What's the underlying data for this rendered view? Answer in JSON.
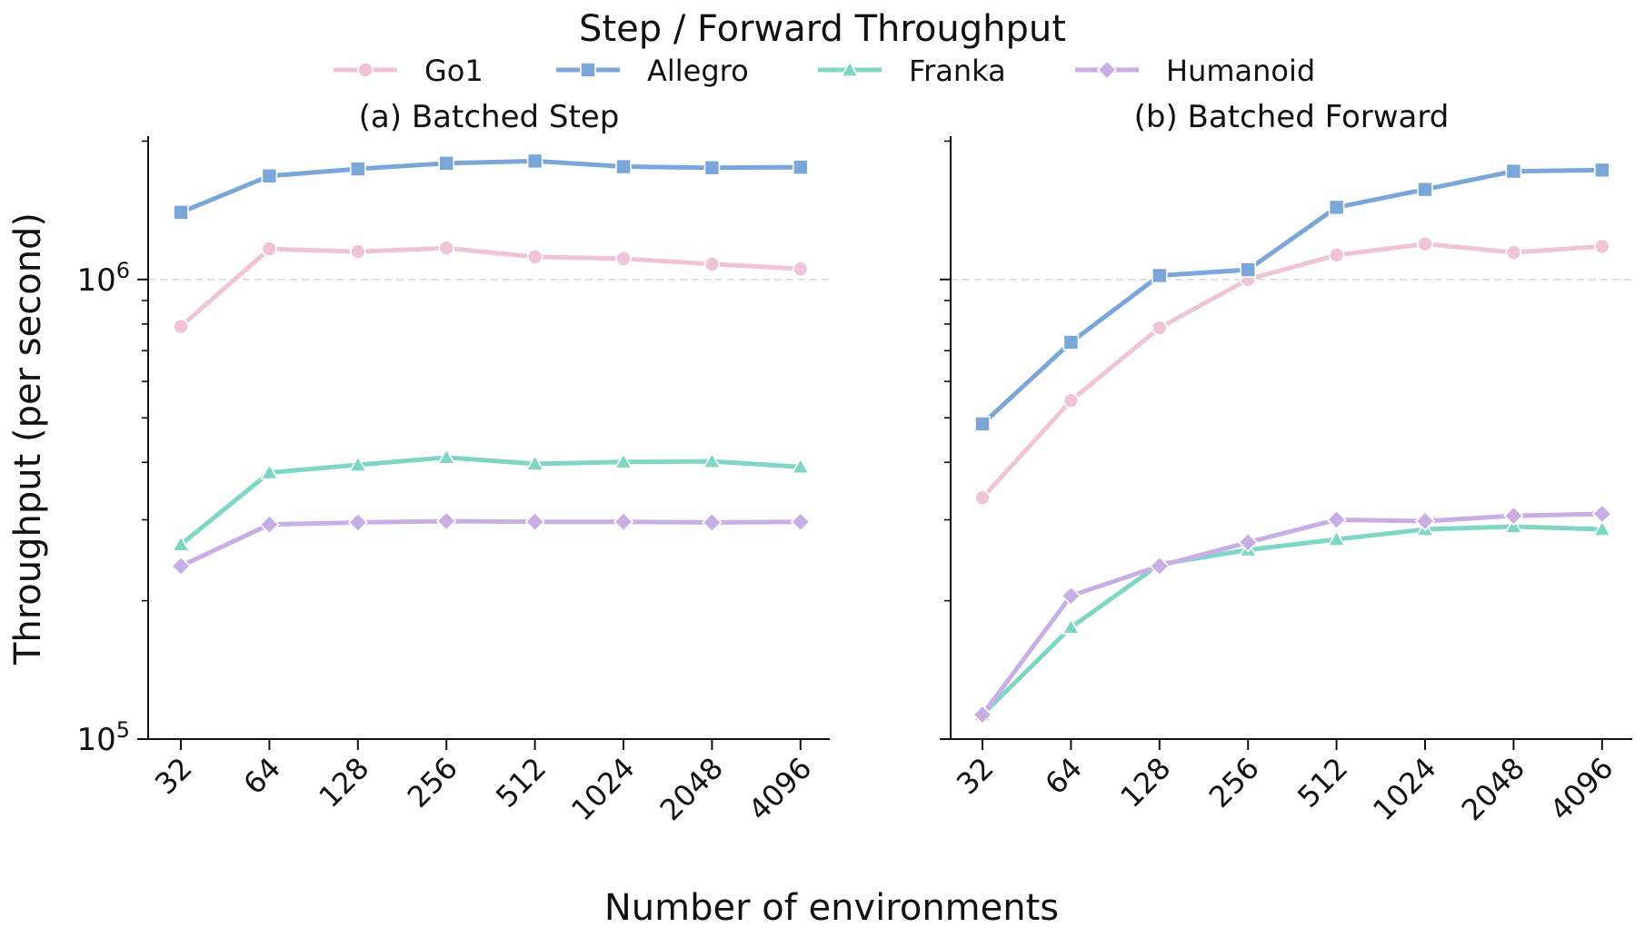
{
  "figure": {
    "title": "Step / Forward Throughput",
    "xlabel": "Number of environments",
    "ylabel": "Throughput (per second)"
  },
  "legend": [
    {
      "name": "Go1",
      "color": "#f0c4d8",
      "marker": "circle"
    },
    {
      "name": "Allegro",
      "color": "#7aa6d8",
      "marker": "square"
    },
    {
      "name": "Franka",
      "color": "#7fd6c6",
      "marker": "triangle"
    },
    {
      "name": "Humanoid",
      "color": "#c9aee6",
      "marker": "diamond"
    }
  ],
  "chart_data": [
    {
      "type": "line",
      "title": "(a) Batched Step",
      "yscale": "log",
      "ylim": [
        100000,
        2050000
      ],
      "yticks": [
        {
          "value": 100000,
          "label": "10^5"
        },
        {
          "value": 1000000,
          "label": "10^6"
        }
      ],
      "grid": "major-y-dashed",
      "categories": [
        "32",
        "64",
        "128",
        "256",
        "512",
        "1024",
        "2048",
        "4096"
      ],
      "series": [
        {
          "name": "Go1",
          "values": [
            790000,
            1165000,
            1150000,
            1170000,
            1120000,
            1110000,
            1080000,
            1055000
          ]
        },
        {
          "name": "Allegro",
          "values": [
            1400000,
            1680000,
            1740000,
            1790000,
            1810000,
            1760000,
            1750000,
            1755000
          ]
        },
        {
          "name": "Franka",
          "values": [
            265000,
            380000,
            395000,
            410000,
            397000,
            401000,
            402000,
            391000
          ]
        },
        {
          "name": "Humanoid",
          "values": [
            238000,
            293000,
            296000,
            298000,
            297000,
            297000,
            296000,
            297000
          ]
        }
      ]
    },
    {
      "type": "line",
      "title": "(b) Batched Forward",
      "yscale": "log",
      "ylim": [
        100000,
        2050000
      ],
      "yticks": [],
      "grid": "major-y-dashed",
      "categories": [
        "32",
        "64",
        "128",
        "256",
        "512",
        "1024",
        "2048",
        "4096"
      ],
      "series": [
        {
          "name": "Go1",
          "values": [
            335000,
            545000,
            785000,
            1000000,
            1130000,
            1195000,
            1145000,
            1180000
          ]
        },
        {
          "name": "Allegro",
          "values": [
            485000,
            730000,
            1020000,
            1050000,
            1435000,
            1570000,
            1720000,
            1730000
          ]
        },
        {
          "name": "Franka",
          "values": [
            113000,
            175000,
            240000,
            258000,
            272000,
            286000,
            290000,
            286000
          ]
        },
        {
          "name": "Humanoid",
          "values": [
            113000,
            205000,
            238000,
            268000,
            300000,
            298000,
            306000,
            309000
          ]
        }
      ]
    }
  ]
}
